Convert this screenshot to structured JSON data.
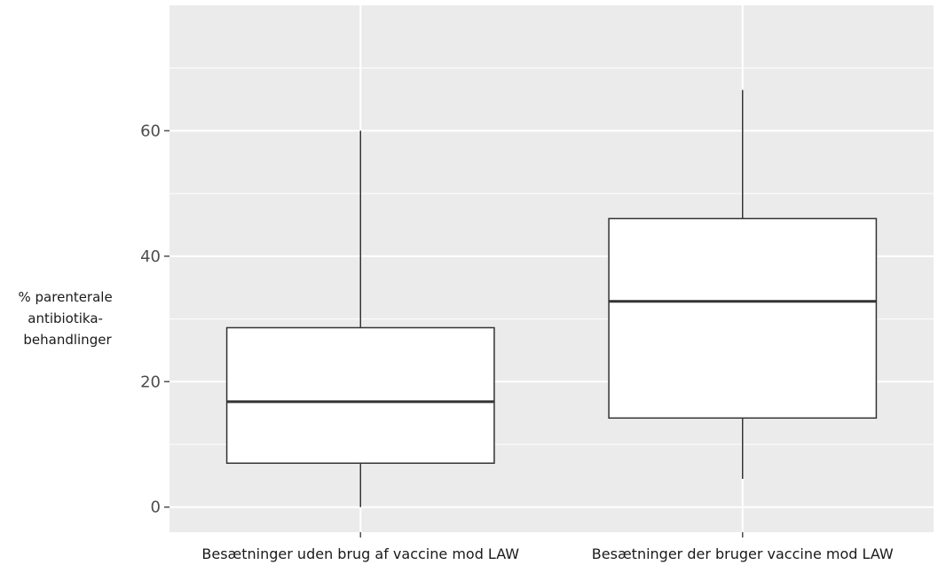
{
  "chart_data": {
    "type": "boxplot",
    "title": "",
    "xlabel": "",
    "ylabel": [
      "% parenterale",
      "antibiotika-",
      "behandlinger"
    ],
    "ylim": [
      -4,
      80
    ],
    "yticks": [
      0,
      20,
      40,
      60
    ],
    "grid": true,
    "categories": [
      "Besætninger uden brug af  vaccine mod LAW",
      "Besætninger der bruger vaccine mod LAW"
    ],
    "boxes": [
      {
        "min": 0,
        "q1": 7,
        "median": 16.8,
        "q3": 28.6,
        "max": 60
      },
      {
        "min": 4.5,
        "q1": 14.2,
        "median": 32.8,
        "q3": 46,
        "max": 66.5
      }
    ],
    "colors": {
      "panel": "#ebebeb",
      "grid": "#ffffff",
      "box_fill": "#ffffff",
      "box_stroke": "#333333"
    }
  }
}
